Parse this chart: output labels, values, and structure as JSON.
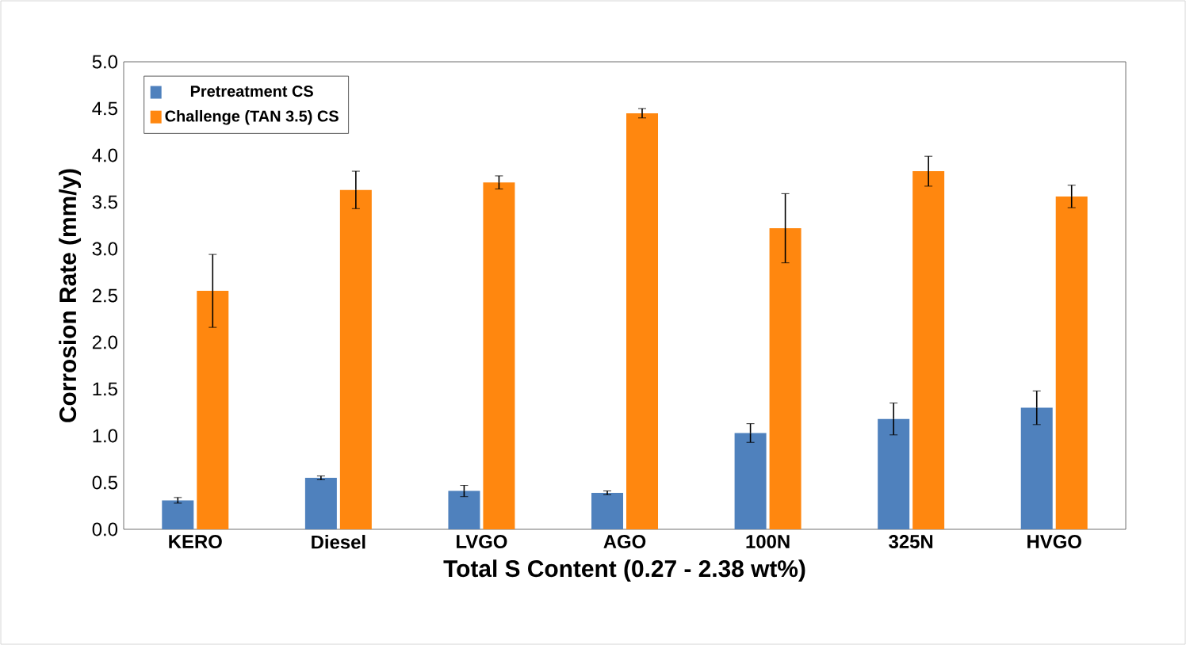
{
  "chart_data": {
    "type": "bar",
    "xlabel": "Total S Content (0.27 - 2.38 wt%)",
    "ylabel": "Corrosion Rate (mm/y)",
    "categories": [
      "KERO",
      "Diesel",
      "LVGO",
      "AGO",
      "100N",
      "325N",
      "HVGO"
    ],
    "series": [
      {
        "name": "Pretreatment CS",
        "color": "#4f81bd",
        "values": [
          0.31,
          0.55,
          0.41,
          0.39,
          1.03,
          1.18,
          1.3
        ],
        "errors": [
          0.03,
          0.02,
          0.06,
          0.02,
          0.1,
          0.17,
          0.18
        ]
      },
      {
        "name": "Challenge (TAN 3.5) CS",
        "color": "#ff870f",
        "values": [
          2.55,
          3.63,
          3.71,
          4.45,
          3.22,
          3.83,
          3.56
        ],
        "errors": [
          0.39,
          0.2,
          0.07,
          0.05,
          0.37,
          0.16,
          0.12
        ]
      }
    ],
    "ylim": [
      0,
      5
    ],
    "yticks": [
      {
        "value": 0,
        "label": "0.0"
      },
      {
        "value": 0.5,
        "label": "0.5"
      },
      {
        "value": 1,
        "label": "1.0"
      },
      {
        "value": 1.5,
        "label": "1.5"
      },
      {
        "value": 2,
        "label": "2.0"
      },
      {
        "value": 2.5,
        "label": "2.5"
      },
      {
        "value": 3,
        "label": "3.0"
      },
      {
        "value": 3.5,
        "label": "3.5"
      },
      {
        "value": 4,
        "label": "4.0"
      },
      {
        "value": 4.5,
        "label": "4.5"
      },
      {
        "value": 5,
        "label": "5.0"
      }
    ],
    "grid": false,
    "legend": "top left"
  }
}
